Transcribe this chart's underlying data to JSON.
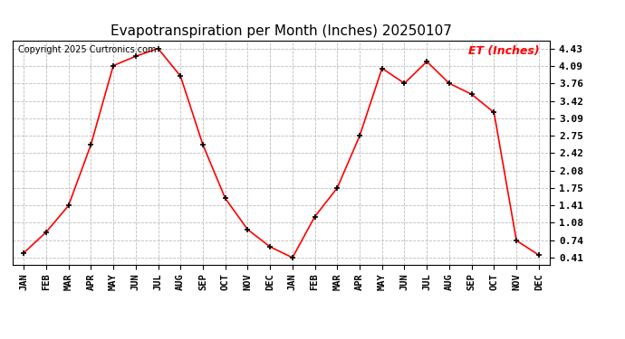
{
  "title": "Evapotranspiration per Month (Inches) 20250107",
  "copyright": "Copyright 2025 Curtronics.com",
  "ylabel": "ET (Inches)",
  "ylabel_color": "red",
  "yticks": [
    0.41,
    0.74,
    1.08,
    1.41,
    1.75,
    2.08,
    2.42,
    2.75,
    3.09,
    3.42,
    3.76,
    4.09,
    4.43
  ],
  "xlabels": [
    "JAN",
    "FEB",
    "MAR",
    "APR",
    "MAY",
    "JUN",
    "JUL",
    "AUG",
    "SEP",
    "OCT",
    "NOV",
    "DEC",
    "JAN",
    "FEB",
    "MAR",
    "APR",
    "MAY",
    "JUN",
    "JUL",
    "AUG",
    "SEP",
    "OCT",
    "NOV",
    "DEC"
  ],
  "values": [
    0.5,
    0.9,
    1.41,
    2.58,
    4.1,
    4.28,
    4.43,
    3.9,
    2.58,
    1.55,
    0.95,
    0.62,
    0.41,
    1.2,
    1.75,
    2.75,
    4.05,
    3.76,
    4.18,
    3.76,
    3.55,
    3.2,
    0.74,
    0.46
  ],
  "line_color": "red",
  "marker": "+",
  "marker_color": "black",
  "marker_size": 5,
  "line_width": 1.2,
  "grid_color": "#bbbbbb",
  "background_color": "#ffffff",
  "title_fontsize": 11,
  "copyright_fontsize": 7,
  "ylabel_fontsize": 9,
  "ytick_fontsize": 8,
  "xlabel_fontsize": 7.5,
  "ylim_min": 0.28,
  "ylim_max": 4.58
}
